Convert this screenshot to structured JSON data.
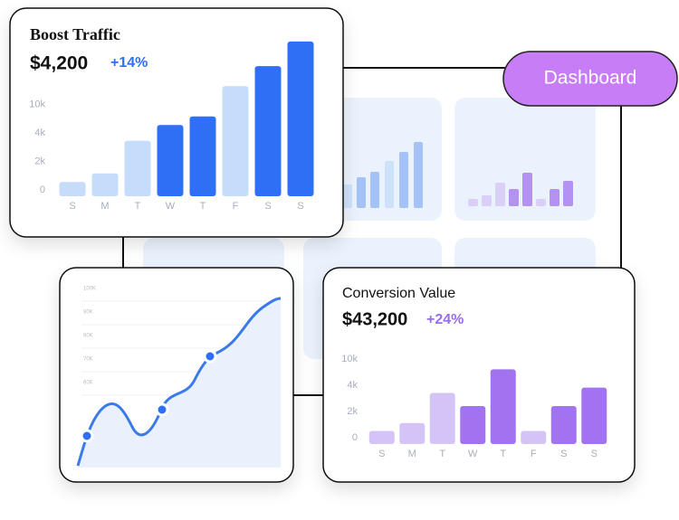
{
  "badge": "Dashboard",
  "cards": [
    {
      "title": "Boost Traffic",
      "value": "$4,200",
      "change": "+14%",
      "chart": {
        "type": "bar",
        "yticks": [
          {
            "value": 0,
            "label": "0"
          },
          {
            "value": 2000,
            "label": "2k"
          },
          {
            "value": 4000,
            "label": "4k"
          },
          {
            "value": 10000,
            "label": "10k"
          }
        ],
        "categories": [
          "S",
          "M",
          "T",
          "W",
          "T",
          "F",
          "S",
          "S"
        ],
        "values": [
          1000,
          1600,
          3900,
          7000,
          8800,
          15200,
          19400,
          24600
        ],
        "colors": [
          "#c5dcfb",
          "#c5dcfb",
          "#c5dcfb",
          "#2f6ff5",
          "#2f6ff5",
          "#c5dcfb",
          "#2f6ff5",
          "#2f6ff5"
        ],
        "change_color": "#2f6ff5"
      }
    },
    {
      "title": "Conversion Value",
      "value": "$43,200",
      "change": "+24%",
      "chart": {
        "type": "bar",
        "yticks": [
          {
            "value": 0,
            "label": "0"
          },
          {
            "value": 2000,
            "label": "2k"
          },
          {
            "value": 4000,
            "label": "4k"
          },
          {
            "value": 10000,
            "label": "10k"
          }
        ],
        "categories": [
          "S",
          "M",
          "T",
          "W",
          "T",
          "F",
          "S",
          "S"
        ],
        "values": [
          1000,
          1600,
          3900,
          2900,
          9100,
          1000,
          2900,
          4900
        ],
        "colors": [
          "#d4c4f6",
          "#d4c4f6",
          "#d4c4f6",
          "#a273f0",
          "#a273f0",
          "#d4c4f6",
          "#a273f0",
          "#a273f0"
        ],
        "change_color": "#9a6cf0"
      }
    }
  ],
  "line_card": {
    "yticks": [
      "100K",
      "90K",
      "80K",
      "70K",
      "60K"
    ]
  }
}
